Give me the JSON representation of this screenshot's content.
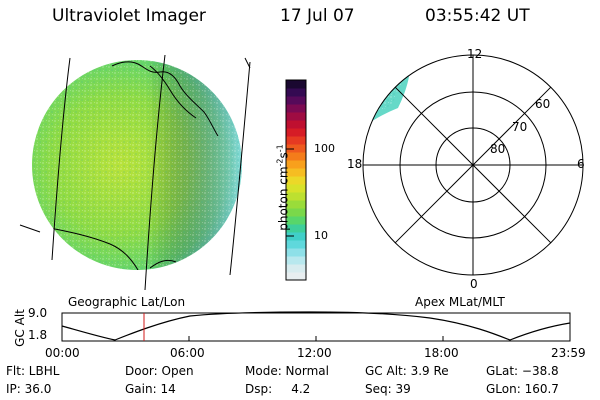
{
  "header": {
    "instrument": "Ultraviolet Imager",
    "date": "17 Jul 07",
    "time": "03:55:42 UT"
  },
  "left_panel": {
    "label": "Geographic Lat/Lon"
  },
  "right_panel": {
    "label": "Apex MLat/MLT",
    "mlt_labels": [
      "12",
      "18",
      "6",
      "0"
    ],
    "lat_labels": [
      "60",
      "70",
      "80"
    ]
  },
  "colorbar": {
    "unit_main": "photon cm",
    "unit_exp1": "-2",
    "unit_mid": "s",
    "unit_exp2": "-1",
    "ticks": [
      "100",
      "10"
    ],
    "colors": [
      "#e8eef0",
      "#d8ecef",
      "#b8e8ee",
      "#8ee0e8",
      "#5fd8dc",
      "#40cfc8",
      "#3ecf9a",
      "#58d66a",
      "#7ad84a",
      "#9adc3a",
      "#bde030",
      "#d8e22a",
      "#ecd828",
      "#f6bd22",
      "#f8a01c",
      "#f47c1a",
      "#ee5a1e",
      "#e63a22",
      "#d61c26",
      "#bf1030",
      "#9f0c42",
      "#7c0a52",
      "#560a5a",
      "#340a52",
      "#1a0830"
    ]
  },
  "gc_alt_panel": {
    "ylabel": "GC Alt",
    "ytick_top": "9.0",
    "ytick_bottom": "1.8",
    "xticks": [
      "00:00",
      "06:00",
      "12:00",
      "18:00",
      "23:59"
    ]
  },
  "status": {
    "flt": "Flt: LBHL",
    "ip": "IP: 36.0",
    "door": "Door: Open",
    "gain": "Gain: 14",
    "mode": "Mode: Normal",
    "dsp": "Dsp:     4.2",
    "gc_alt": "GC Alt: 3.9 Re",
    "seq": "Seq: 39",
    "glat": "GLat: −38.8",
    "glon": "GLon: 160.7"
  }
}
